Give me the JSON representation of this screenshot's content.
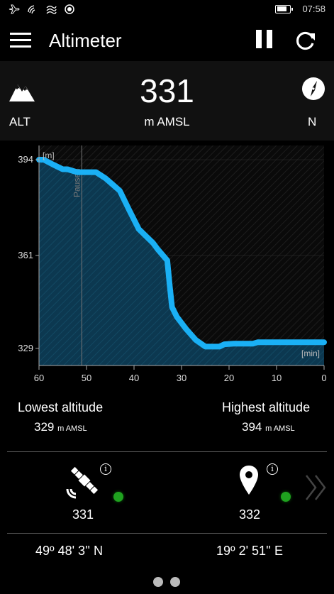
{
  "status_bar": {
    "icons": [
      "airplane-icon",
      "wifi-icon",
      "wifi-calling-icon",
      "location-icon"
    ],
    "battery_level": 0.8,
    "time": "07:58"
  },
  "app_bar": {
    "title": "Altimeter",
    "icons": [
      "hamburger-menu-icon",
      "pause-icon",
      "refresh-icon"
    ]
  },
  "header": {
    "left_icon": "mountain-icon",
    "left_label": "ALT",
    "value": "331",
    "unit": "m AMSL",
    "right_icon": "compass-icon",
    "right_label": "N"
  },
  "chart_data": {
    "type": "area",
    "x_label": "[min]",
    "y_label": "[m]",
    "x_ticks": [
      "60",
      "50",
      "40",
      "30",
      "20",
      "10",
      "0"
    ],
    "y_ticks": [
      "394",
      "361",
      "329"
    ],
    "xlim": [
      60,
      0
    ],
    "ylim": [
      323.1,
      398.9
    ],
    "paused_label": "Paused",
    "paused_at": 51,
    "colors": {
      "line": "#1ab0f5",
      "fill": "#0c3850",
      "background": "#0a0a0a",
      "grid": "#333333"
    },
    "x": [
      60,
      59,
      57,
      55,
      54,
      52,
      50,
      48,
      46,
      43,
      41,
      39,
      37,
      36,
      35,
      33,
      32.5,
      32,
      31,
      29,
      27,
      25,
      23.5,
      22,
      21,
      19,
      17,
      15,
      14,
      12,
      9,
      6,
      3,
      0
    ],
    "y": [
      394,
      394,
      392.3,
      390.7,
      390.7,
      389.7,
      389.7,
      389.7,
      387.6,
      383.3,
      376.6,
      370.1,
      366.9,
      365.3,
      363.1,
      359.3,
      350.7,
      343.2,
      339.9,
      335.6,
      331.9,
      329.6,
      329.6,
      329.6,
      330.4,
      330.6,
      330.6,
      330.6,
      331.1,
      331.1,
      331.1,
      331.1,
      331.1,
      331.1
    ]
  },
  "stats": {
    "lowest_label": "Lowest altitude",
    "lowest_value": "329",
    "lowest_unit": "m AMSL",
    "highest_label": "Highest altitude",
    "highest_value": "394",
    "highest_unit": "m AMSL"
  },
  "fix": {
    "gps_icon": "satellite-icon",
    "gps_value": "331",
    "gps_status_color": "#1fa21f",
    "map_icon": "map-pin-icon",
    "map_value": "332",
    "map_status_color": "#1fa21f",
    "info_glyph": "i",
    "next_icon": "chevron-right-icon"
  },
  "coordinates": {
    "latitude": "49º 48' 3'' N",
    "longitude": "19º 2' 51'' E"
  },
  "pager": {
    "count": 2,
    "active": 0
  }
}
